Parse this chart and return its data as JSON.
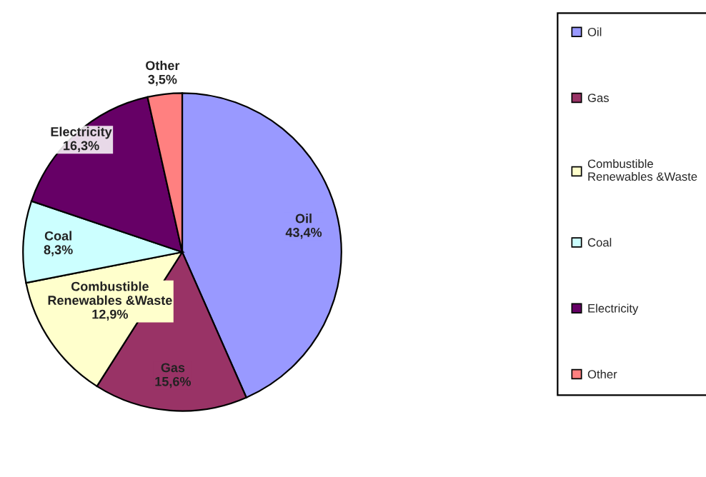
{
  "chart_data": {
    "type": "pie",
    "categories": [
      "Oil",
      "Gas",
      "Combustible\nRenewables &Waste",
      "Coal",
      "Electricity",
      "Other"
    ],
    "values": [
      43.4,
      15.6,
      12.9,
      8.3,
      16.3,
      3.5
    ],
    "value_labels": [
      "43,4%",
      "15,6%",
      "12,9%",
      "8,3%",
      "16,3%",
      "3,5%"
    ],
    "colors": [
      "#9999ff",
      "#993366",
      "#ffffcc",
      "#ccffff",
      "#660066",
      "#ff8080"
    ],
    "legend": "right"
  }
}
